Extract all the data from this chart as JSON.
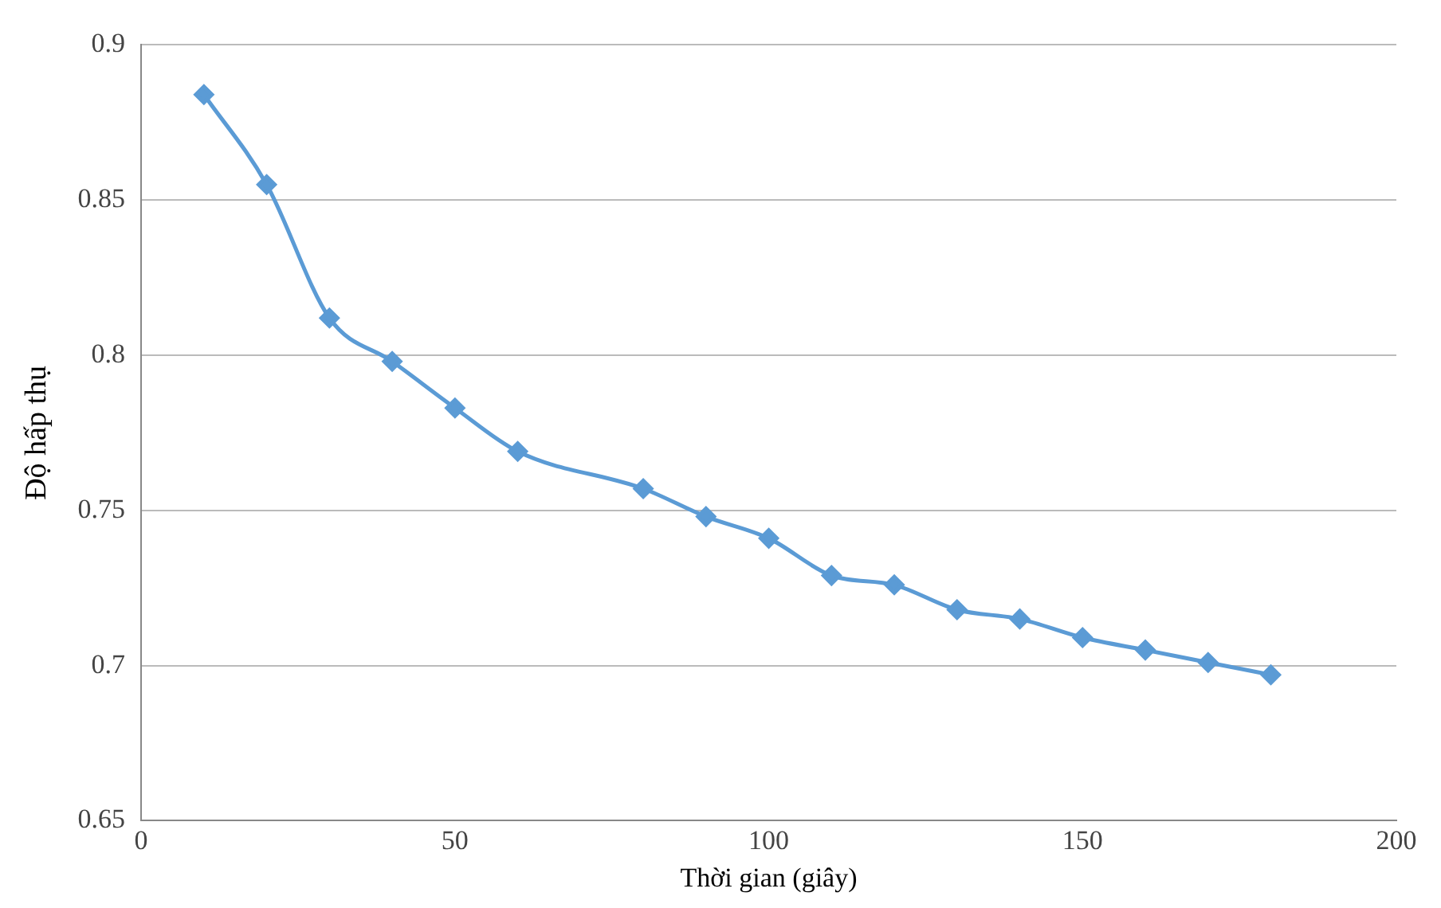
{
  "chart_data": {
    "type": "line",
    "xlabel": "Thời gian (giây)",
    "ylabel": "Độ hấp thụ",
    "x": [
      10,
      20,
      30,
      40,
      50,
      60,
      80,
      90,
      100,
      110,
      120,
      130,
      140,
      150,
      160,
      170,
      180
    ],
    "series": [
      {
        "color": "#5b9bd5",
        "values": [
          0.884,
          0.855,
          0.812,
          0.798,
          0.783,
          0.769,
          0.757,
          0.748,
          0.741,
          0.729,
          0.726,
          0.718,
          0.715,
          0.709,
          0.705,
          0.701,
          0.697
        ]
      }
    ],
    "xlim": [
      0,
      200
    ],
    "xticks": [
      0,
      50,
      100,
      150,
      200
    ],
    "ylim": [
      0.65,
      0.9
    ],
    "yticks": [
      0.65,
      0.7,
      0.75,
      0.8,
      0.85,
      0.9
    ],
    "grid": "y",
    "legend": false,
    "marker": "diamond",
    "line_style": "solid"
  }
}
